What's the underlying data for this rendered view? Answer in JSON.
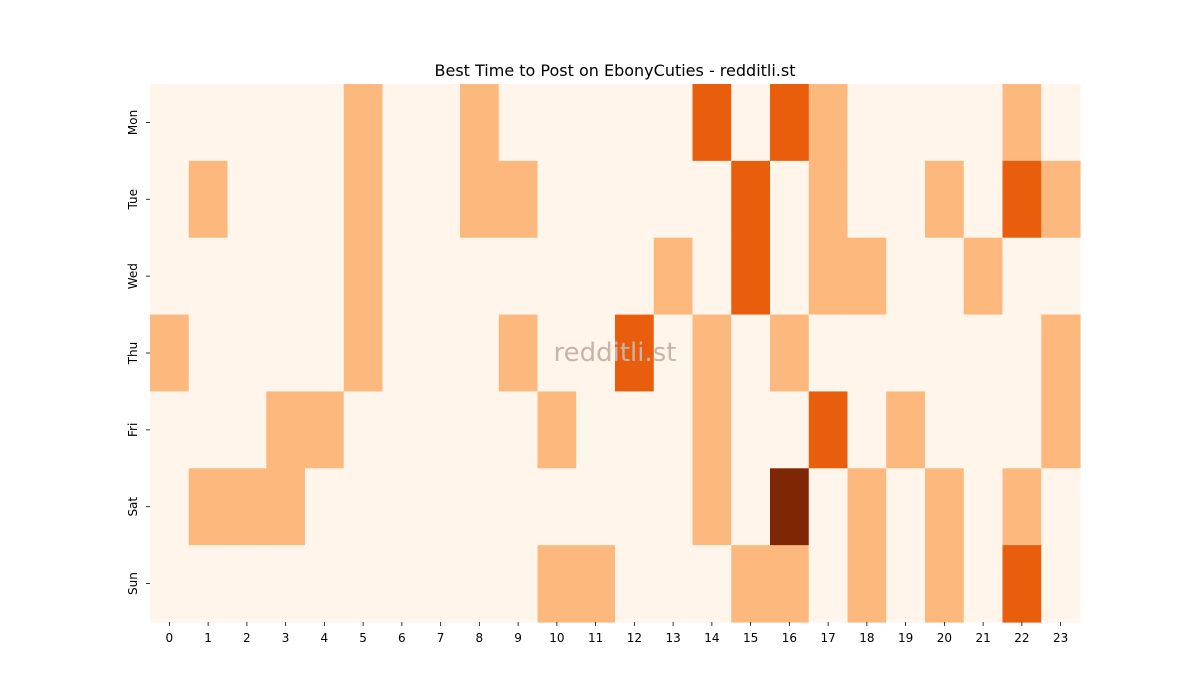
{
  "chart_data": {
    "type": "heatmap",
    "title": "Best Time to Post on EbonyCuties - redditli.st",
    "watermark": "redditli.st",
    "xlabel": "",
    "ylabel": "",
    "x": [
      "0",
      "1",
      "2",
      "3",
      "4",
      "5",
      "6",
      "7",
      "8",
      "9",
      "10",
      "11",
      "12",
      "13",
      "14",
      "15",
      "16",
      "17",
      "18",
      "19",
      "20",
      "21",
      "22",
      "23"
    ],
    "y": [
      "Mon",
      "Tue",
      "Wed",
      "Thu",
      "Fri",
      "Sat",
      "Sun"
    ],
    "values": [
      [
        0,
        0,
        0,
        0,
        0,
        1,
        0,
        0,
        1,
        0,
        0,
        0,
        0,
        0,
        2,
        0,
        2,
        1,
        0,
        0,
        0,
        0,
        1,
        0
      ],
      [
        0,
        1,
        0,
        0,
        0,
        1,
        0,
        0,
        1,
        1,
        0,
        0,
        0,
        0,
        0,
        2,
        0,
        1,
        0,
        0,
        1,
        0,
        2,
        1
      ],
      [
        0,
        0,
        0,
        0,
        0,
        1,
        0,
        0,
        0,
        0,
        0,
        0,
        0,
        1,
        0,
        2,
        0,
        1,
        1,
        0,
        0,
        1,
        0,
        0
      ],
      [
        1,
        0,
        0,
        0,
        0,
        1,
        0,
        0,
        0,
        1,
        0,
        0,
        2,
        0,
        1,
        0,
        1,
        0,
        0,
        0,
        0,
        0,
        0,
        1
      ],
      [
        0,
        0,
        0,
        1,
        1,
        0,
        0,
        0,
        0,
        0,
        1,
        0,
        0,
        0,
        1,
        0,
        0,
        2,
        0,
        1,
        0,
        0,
        0,
        1
      ],
      [
        0,
        1,
        1,
        1,
        0,
        0,
        0,
        0,
        0,
        0,
        0,
        0,
        0,
        0,
        1,
        0,
        3,
        0,
        1,
        0,
        1,
        0,
        1,
        0
      ],
      [
        0,
        0,
        0,
        0,
        0,
        0,
        0,
        0,
        0,
        0,
        1,
        1,
        0,
        0,
        0,
        1,
        1,
        0,
        1,
        0,
        1,
        0,
        2,
        0
      ]
    ],
    "colorscale": [
      "#fff5eb",
      "#fdb97d",
      "#e95e0d",
      "#7f2704"
    ],
    "grid": false,
    "legend": "none"
  }
}
